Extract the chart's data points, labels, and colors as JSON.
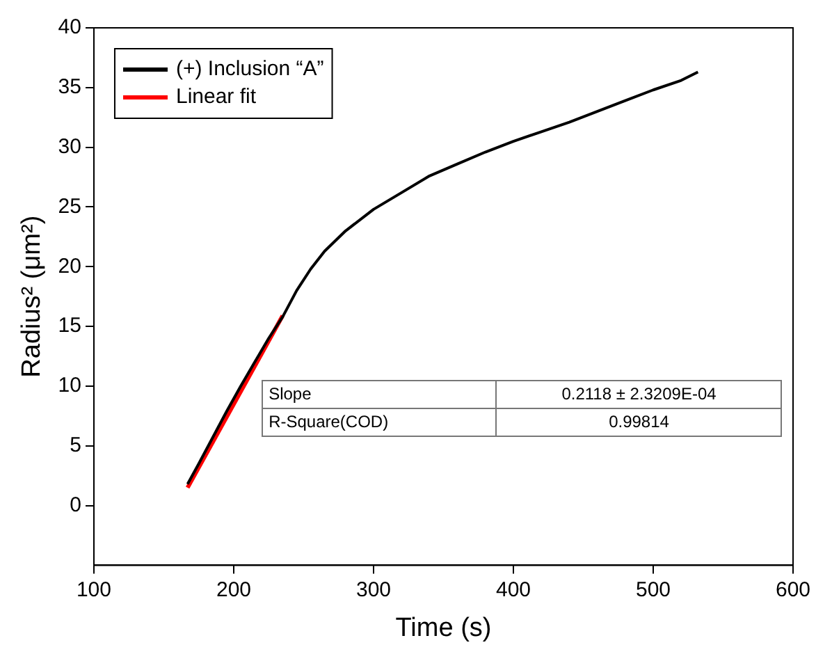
{
  "chart_data": {
    "type": "line",
    "xlabel": "Time (s)",
    "ylabel": "Radius² (μm²)",
    "xlim": [
      100,
      600
    ],
    "xticks": [
      100,
      200,
      300,
      400,
      500,
      600
    ],
    "ylim": [
      -5,
      40
    ],
    "yticks": [
      0,
      5,
      10,
      15,
      20,
      25,
      30,
      35,
      40
    ],
    "grid": false,
    "legend": "top left",
    "marker": "none",
    "line_style": "solid",
    "series": [
      {
        "name": "(+) Inclusion “A”",
        "color": "#000000",
        "x": [
          167,
          175,
          185,
          195,
          205,
          215,
          225,
          235,
          245,
          255,
          265,
          280,
          300,
          320,
          340,
          360,
          380,
          400,
          420,
          440,
          460,
          480,
          500,
          520,
          532
        ],
        "values": [
          1.8,
          3.5,
          5.7,
          7.9,
          10.0,
          12.0,
          14.0,
          15.8,
          18.0,
          19.8,
          21.3,
          23.0,
          24.8,
          26.2,
          27.6,
          28.6,
          29.6,
          30.5,
          31.3,
          32.1,
          33.0,
          33.9,
          34.8,
          35.6,
          36.3
        ]
      },
      {
        "name": "Linear fit",
        "color": "#ff0000",
        "x": [
          167,
          235
        ],
        "values": [
          1.5,
          15.9
        ]
      }
    ],
    "annotations": [
      "Slope",
      "0.2118 ± 2.3209E-04",
      "R-Square(COD)",
      "0.99814"
    ]
  }
}
